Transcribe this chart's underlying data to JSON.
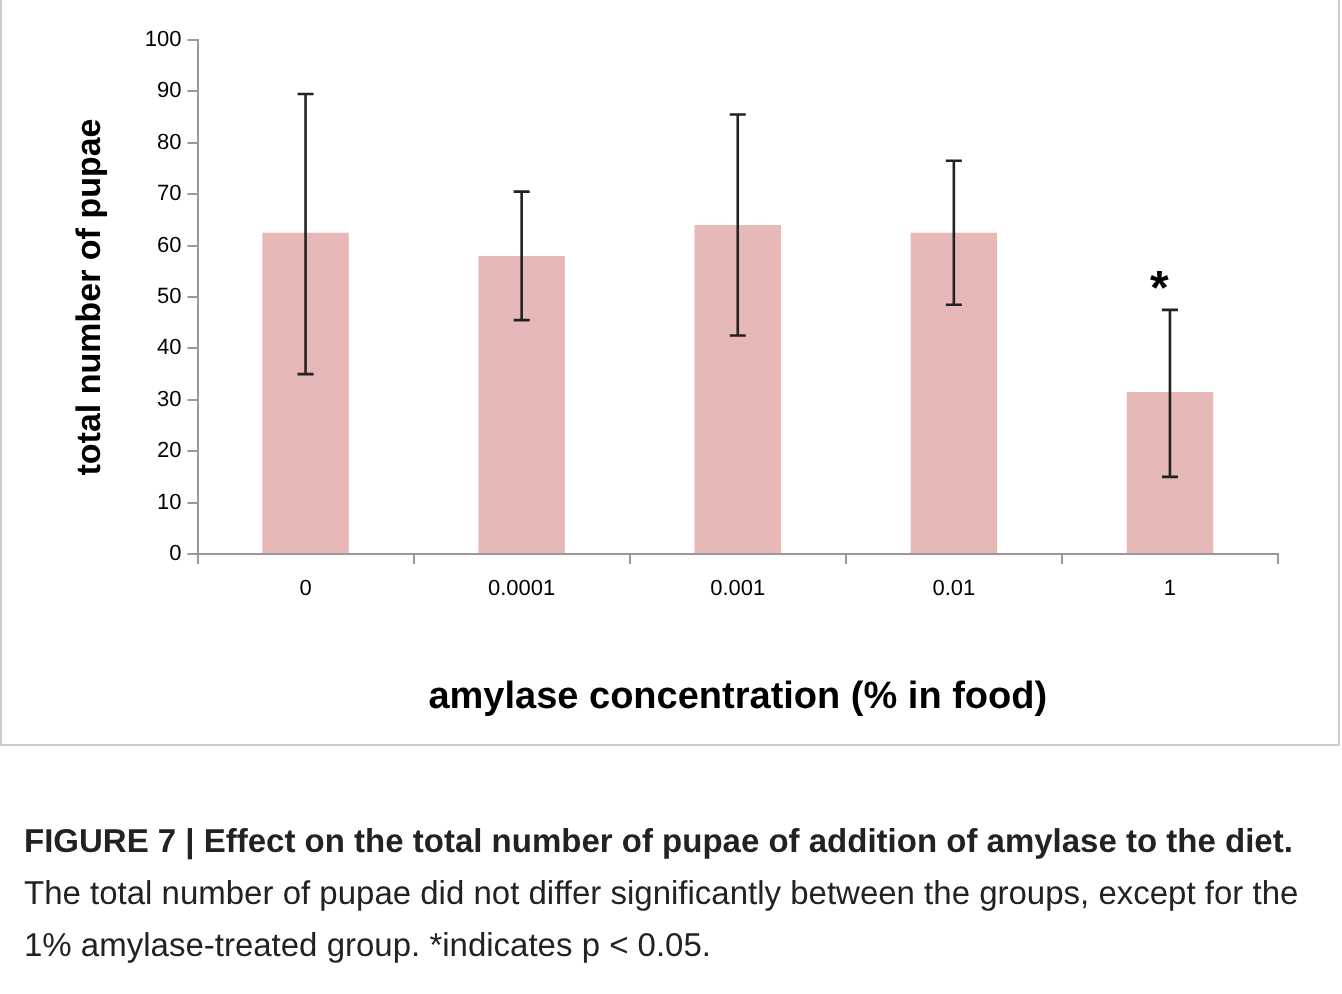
{
  "chart_data": {
    "type": "bar",
    "title": "FIGURE 7 | Effect on the total number of pupae of addition of amylase to the diet.",
    "xlabel": "amylase concentration (% in food)",
    "ylabel": "total number of pupae",
    "categories": [
      "0",
      "0.0001",
      "0.001",
      "0.01",
      "1"
    ],
    "values": [
      62.5,
      58,
      64,
      62.5,
      31.5
    ],
    "color": "#e6b8b7",
    "errors": [
      [
        35,
        89.5
      ],
      [
        45.5,
        70.5
      ],
      [
        42.5,
        85.5
      ],
      [
        48.5,
        76.5
      ],
      [
        15,
        47.5
      ]
    ],
    "ylim": [
      0,
      100
    ],
    "yticks": [
      0,
      10,
      20,
      30,
      40,
      50,
      60,
      70,
      80,
      90,
      100
    ],
    "grid": false,
    "legend": false,
    "annotations": [
      "*",
      "The total number of pupae did not differ significantly between the groups, except for the 1% amylase-treated group. *indicates p < 0.05."
    ]
  }
}
